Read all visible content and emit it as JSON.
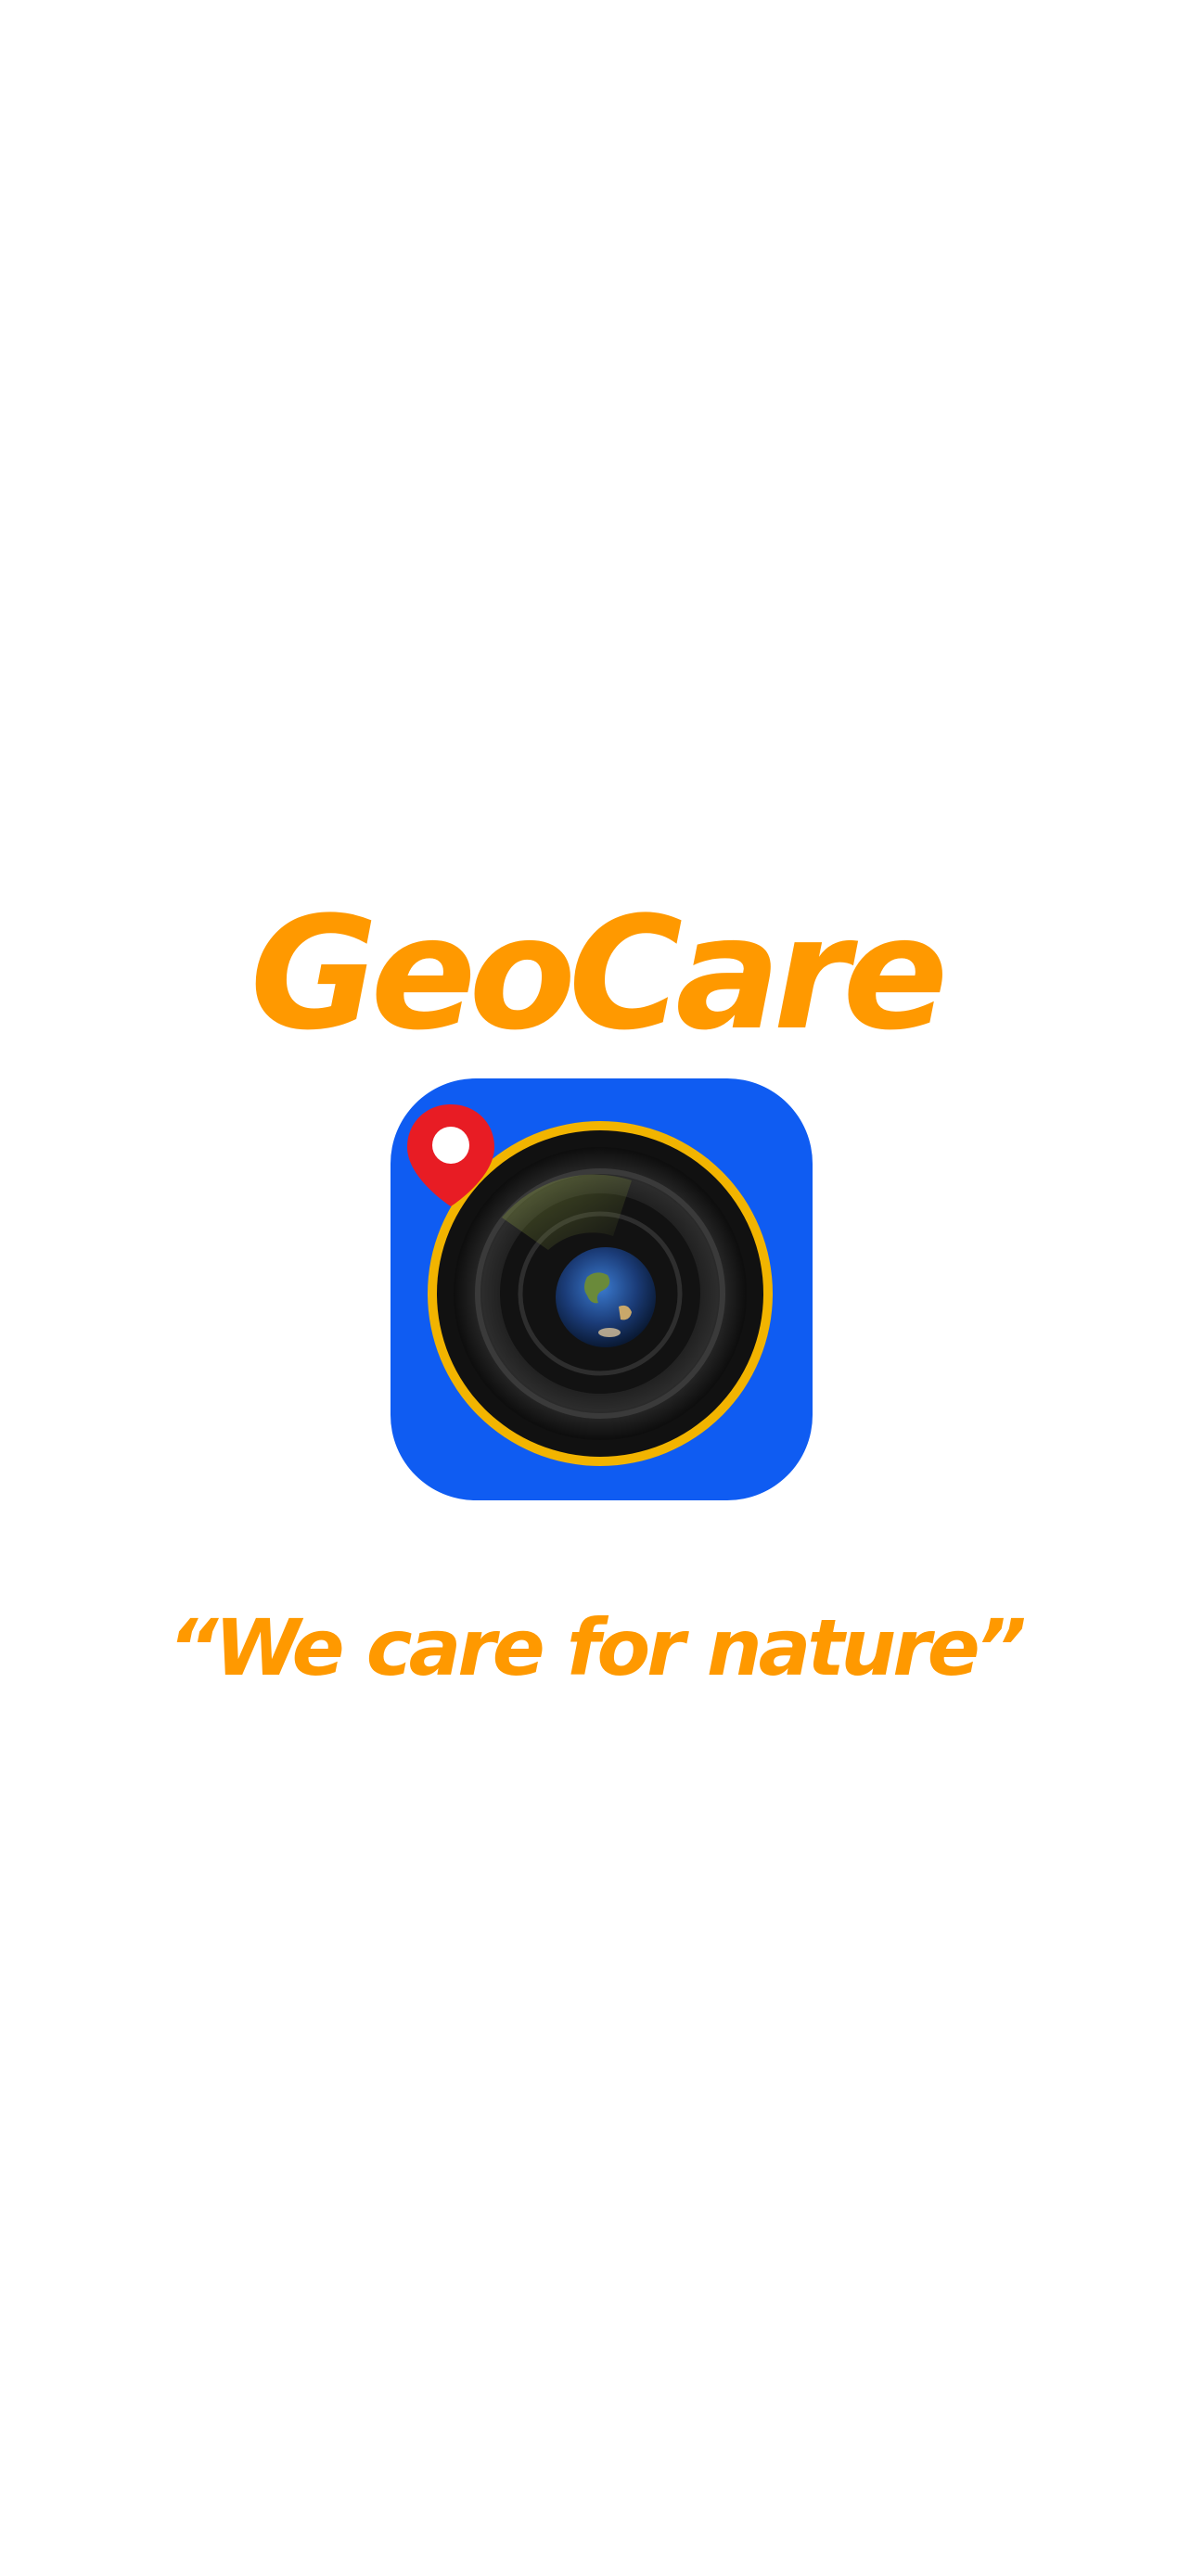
{
  "splash": {
    "app_name": "GeoCare",
    "tagline": "“We  care for nature”",
    "logo": {
      "icon": "camera-lens-location-pin-icon",
      "colors": {
        "tile": "#0F5CF2",
        "ring": "#F2B400",
        "pin": "#E81C24",
        "lens": "#1A1A1A"
      }
    },
    "colors": {
      "brand_orange": "#FF9900",
      "background": "#FFFFFF"
    }
  }
}
